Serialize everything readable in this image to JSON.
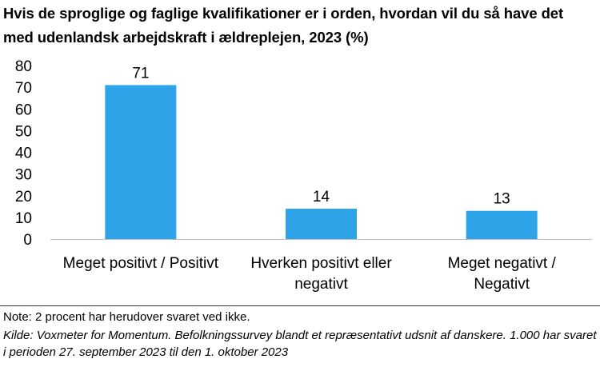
{
  "title": "Hvis de sproglige og faglige kvalifikationer er i orden, hvordan vil du så have det med udenlandsk arbejdskraft i ældreplejen, 2023 (%)",
  "note": "Note: 2 procent har herudover svaret ved ikke.",
  "source": "Kilde: Voxmeter for Momentum. Befolkningssurvey blandt et repræsentativt udsnit af danskere. 1.000 har svaret i perioden 27. september 2023 til den 1. oktober 2023",
  "chart_data": {
    "type": "bar",
    "categories": [
      [
        "Meget positivt / Positivt"
      ],
      [
        "Hverken positivt eller",
        "negativt"
      ],
      [
        "Meget negativt /",
        "Negativt"
      ]
    ],
    "values": [
      71,
      14,
      13
    ],
    "data_labels": [
      "71",
      "14",
      "13"
    ],
    "ylim": [
      0,
      80
    ],
    "yticks": [
      0,
      10,
      20,
      30,
      40,
      50,
      60,
      70,
      80
    ],
    "bar_color": "#2EA3E8",
    "grid": false,
    "legend": "none"
  }
}
